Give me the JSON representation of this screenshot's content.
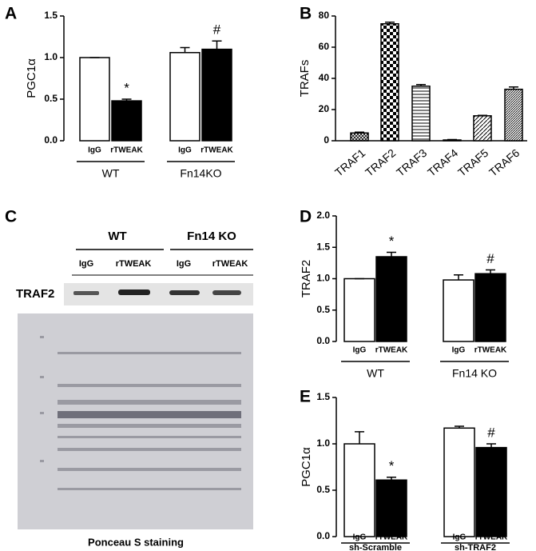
{
  "chart_data": [
    {
      "type": "bar",
      "panel": "A",
      "ylabel": "PGC1α",
      "categories": [
        "IgG",
        "rTWEAK",
        "IgG",
        "rTWEAK"
      ],
      "groups": [
        "WT",
        "Fn14KO"
      ],
      "values": [
        1.0,
        0.48,
        1.06,
        1.1
      ],
      "errors": [
        0.0,
        0.02,
        0.06,
        0.1
      ],
      "colors": [
        "#ffffff",
        "#000000",
        "#ffffff",
        "#000000"
      ],
      "value_annotations": [
        null,
        "*",
        null,
        "#"
      ],
      "ylim": [
        0,
        1.5
      ],
      "yticks": [
        {
          "value": 0,
          "label": "0.0"
        },
        {
          "value": 0.5,
          "label": "0.5"
        },
        {
          "value": 1,
          "label": "1.0"
        },
        {
          "value": 1.5,
          "label": "1.5"
        }
      ]
    },
    {
      "type": "bar",
      "panel": "B",
      "ylabel": "TRAFs",
      "categories": [
        "TRAF1",
        "TRAF2",
        "TRAF3",
        "TRAF4",
        "TRAF5",
        "TRAF6"
      ],
      "values": [
        5,
        75,
        35,
        0.5,
        16,
        33
      ],
      "errors": [
        0.5,
        1,
        1,
        0.3,
        0.3,
        1.5
      ],
      "fills": [
        "crosshatch",
        "checker",
        "hlines",
        "hlines",
        "diag",
        "diag-dense"
      ],
      "ylim": [
        0,
        80
      ],
      "yticks": [
        0,
        20,
        40,
        60,
        80
      ]
    },
    {
      "type": "bar",
      "panel": "D",
      "ylabel": "TRAF2",
      "categories": [
        "IgG",
        "rTWEAK",
        "IgG",
        "rTWEAK"
      ],
      "groups": [
        "WT",
        "Fn14 KO"
      ],
      "values": [
        1.0,
        1.35,
        0.98,
        1.08
      ],
      "errors": [
        0.0,
        0.07,
        0.08,
        0.06
      ],
      "colors": [
        "#ffffff",
        "#000000",
        "#ffffff",
        "#000000"
      ],
      "value_annotations": [
        null,
        "*",
        null,
        "#"
      ],
      "ylim": [
        0,
        2
      ],
      "yticks": [
        {
          "value": 0,
          "label": "0.0"
        },
        {
          "value": 0.5,
          "label": "0.5"
        },
        {
          "value": 1,
          "label": "1.0"
        },
        {
          "value": 1.5,
          "label": "1.5"
        },
        {
          "value": 2,
          "label": "2.0"
        }
      ]
    },
    {
      "type": "bar",
      "panel": "E",
      "ylabel": "PGC1α",
      "categories": [
        "IgG",
        "rTWEAK",
        "IgG",
        "rTWEAK"
      ],
      "groups": [
        "sh-Scramble",
        "sh-TRAF2"
      ],
      "values": [
        1.0,
        0.61,
        1.17,
        0.96
      ],
      "errors": [
        0.13,
        0.03,
        0.02,
        0.04
      ],
      "colors": [
        "#ffffff",
        "#000000",
        "#ffffff",
        "#000000"
      ],
      "value_annotations": [
        null,
        "*",
        null,
        "#"
      ],
      "ylim": [
        0,
        1.5
      ],
      "yticks": [
        {
          "value": 0,
          "label": "0.0"
        },
        {
          "value": 0.5,
          "label": "0.5"
        },
        {
          "value": 1,
          "label": "1.0"
        },
        {
          "value": 1.5,
          "label": "1.5"
        }
      ]
    }
  ],
  "blot": {
    "panel": "C",
    "groups": [
      "WT",
      "Fn14 KO"
    ],
    "lanes": [
      "IgG",
      "rTWEAK",
      "IgG",
      "rTWEAK"
    ],
    "protein": "TRAF2",
    "stain": "Ponceau S staining"
  }
}
